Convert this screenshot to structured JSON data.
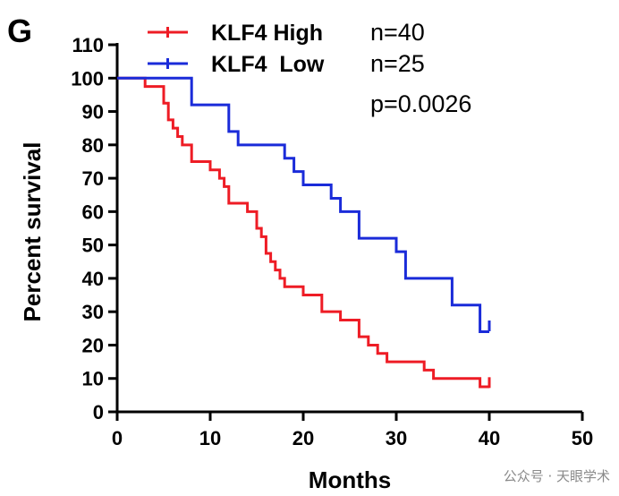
{
  "panel_label": "G",
  "watermark": "公众号 · 天眼学术",
  "colors": {
    "high": "#ee1c25",
    "low": "#1a2bd9",
    "axis": "#000000"
  },
  "legend": [
    {
      "label": "KLF4 High",
      "n": "n=40",
      "color": "#ee1c25"
    },
    {
      "label": "KLF4  Low",
      "n": "n=25",
      "color": "#1a2bd9"
    }
  ],
  "p_value": "p=0.0026",
  "chart_data": {
    "type": "line",
    "subtype": "kaplan-meier-step",
    "title": "",
    "xlabel": "Months",
    "ylabel": "Percent survival",
    "xlim": [
      0,
      50
    ],
    "ylim": [
      0,
      110
    ],
    "xticks": [
      0,
      10,
      20,
      30,
      40,
      50
    ],
    "yticks": [
      0,
      10,
      20,
      30,
      40,
      50,
      60,
      70,
      80,
      90,
      100,
      110
    ],
    "grid": false,
    "legend_position": "top",
    "series": [
      {
        "name": "KLF4 High",
        "color": "#ee1c25",
        "x": [
          0,
          3,
          5,
          5.5,
          6,
          6.5,
          7,
          8,
          10,
          11,
          11.5,
          12,
          14,
          15,
          15.5,
          16,
          16.5,
          17,
          17.5,
          18,
          18.5,
          19,
          20,
          22,
          23,
          24,
          26,
          27,
          28,
          29,
          31,
          33,
          34,
          39,
          40
        ],
        "y": [
          100,
          97.5,
          92.5,
          87.5,
          85,
          82.5,
          80,
          75,
          72.5,
          70,
          67.5,
          62.5,
          60,
          55,
          52.5,
          47.5,
          45,
          42.5,
          40,
          37.5,
          37.5,
          37.5,
          35,
          30,
          30,
          27.5,
          22.5,
          20,
          17.5,
          15,
          15,
          12.5,
          10,
          7.5,
          7.5
        ],
        "censor": [
          {
            "x": 40,
            "y": 8.5
          }
        ]
      },
      {
        "name": "KLF4  Low",
        "color": "#1a2bd9",
        "x": [
          0,
          8,
          12,
          13,
          18,
          19,
          20,
          22,
          23,
          24,
          26,
          29,
          30,
          31,
          36,
          39,
          40
        ],
        "y": [
          100,
          92,
          84,
          80,
          76,
          72,
          68,
          68,
          64,
          60,
          52,
          52,
          48,
          40,
          32,
          24,
          24
        ],
        "censor": [
          {
            "x": 40,
            "y": 25.5
          }
        ]
      }
    ]
  }
}
